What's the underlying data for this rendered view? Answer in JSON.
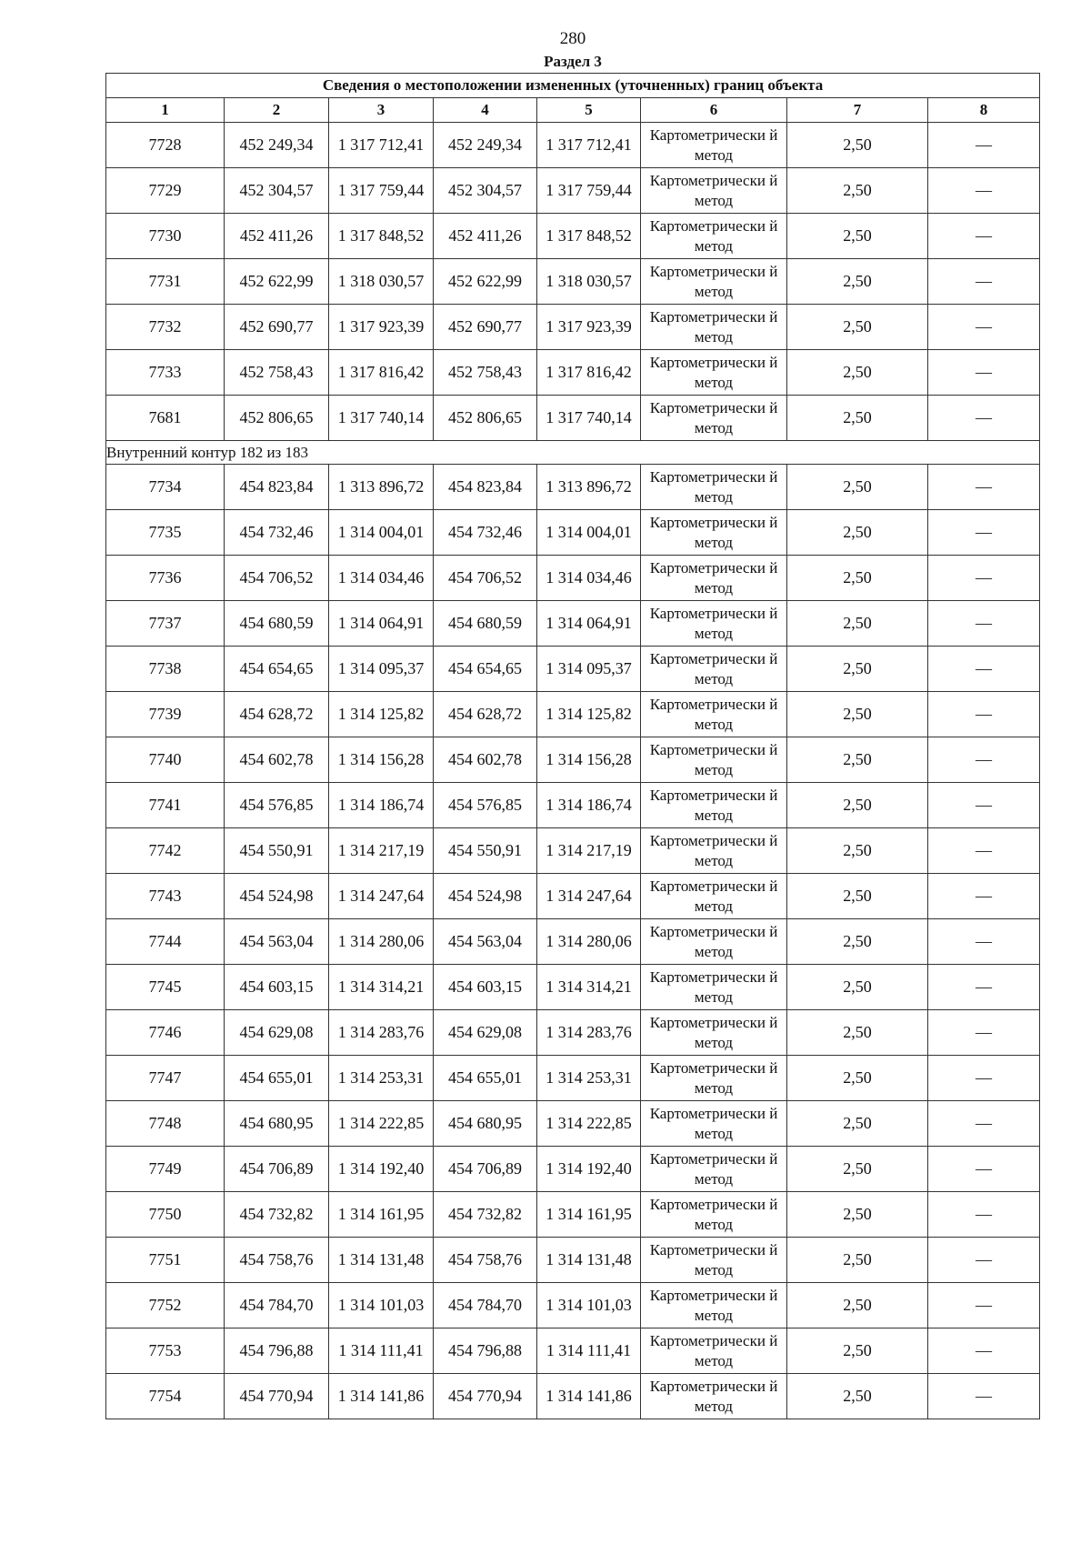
{
  "page_number": "280",
  "section_title": "Раздел 3",
  "table": {
    "caption": "Сведения о местоположении измененных (уточненных) границ объекта",
    "column_numbers": [
      "1",
      "2",
      "3",
      "4",
      "5",
      "6",
      "7",
      "8"
    ],
    "groups": [
      {
        "label": "",
        "rows": [
          [
            "7728",
            "452 249,34",
            "1 317 712,41",
            "452 249,34",
            "1 317 712,41",
            "Картометрически й метод",
            "2,50",
            "—"
          ],
          [
            "7729",
            "452 304,57",
            "1 317 759,44",
            "452 304,57",
            "1 317 759,44",
            "Картометрически й метод",
            "2,50",
            "—"
          ],
          [
            "7730",
            "452 411,26",
            "1 317 848,52",
            "452 411,26",
            "1 317 848,52",
            "Картометрически й метод",
            "2,50",
            "—"
          ],
          [
            "7731",
            "452 622,99",
            "1 318 030,57",
            "452 622,99",
            "1 318 030,57",
            "Картометрически й метод",
            "2,50",
            "—"
          ],
          [
            "7732",
            "452 690,77",
            "1 317 923,39",
            "452 690,77",
            "1 317 923,39",
            "Картометрически й метод",
            "2,50",
            "—"
          ],
          [
            "7733",
            "452 758,43",
            "1 317 816,42",
            "452 758,43",
            "1 317 816,42",
            "Картометрически й метод",
            "2,50",
            "—"
          ],
          [
            "7681",
            "452 806,65",
            "1 317 740,14",
            "452 806,65",
            "1 317 740,14",
            "Картометрически й метод",
            "2,50",
            "—"
          ]
        ]
      },
      {
        "label": "Внутренний контур 182 из 183",
        "rows": [
          [
            "7734",
            "454 823,84",
            "1 313 896,72",
            "454 823,84",
            "1 313 896,72",
            "Картометрически й метод",
            "2,50",
            "—"
          ],
          [
            "7735",
            "454 732,46",
            "1 314 004,01",
            "454 732,46",
            "1 314 004,01",
            "Картометрически й метод",
            "2,50",
            "—"
          ],
          [
            "7736",
            "454 706,52",
            "1 314 034,46",
            "454 706,52",
            "1 314 034,46",
            "Картометрически й метод",
            "2,50",
            "—"
          ],
          [
            "7737",
            "454 680,59",
            "1 314 064,91",
            "454 680,59",
            "1 314 064,91",
            "Картометрически й метод",
            "2,50",
            "—"
          ],
          [
            "7738",
            "454 654,65",
            "1 314 095,37",
            "454 654,65",
            "1 314 095,37",
            "Картометрически й метод",
            "2,50",
            "—"
          ],
          [
            "7739",
            "454 628,72",
            "1 314 125,82",
            "454 628,72",
            "1 314 125,82",
            "Картометрически й метод",
            "2,50",
            "—"
          ],
          [
            "7740",
            "454 602,78",
            "1 314 156,28",
            "454 602,78",
            "1 314 156,28",
            "Картометрически й метод",
            "2,50",
            "—"
          ],
          [
            "7741",
            "454 576,85",
            "1 314 186,74",
            "454 576,85",
            "1 314 186,74",
            "Картометрически й метод",
            "2,50",
            "—"
          ],
          [
            "7742",
            "454 550,91",
            "1 314 217,19",
            "454 550,91",
            "1 314 217,19",
            "Картометрически й метод",
            "2,50",
            "—"
          ],
          [
            "7743",
            "454 524,98",
            "1 314 247,64",
            "454 524,98",
            "1 314 247,64",
            "Картометрически й метод",
            "2,50",
            "—"
          ],
          [
            "7744",
            "454 563,04",
            "1 314 280,06",
            "454 563,04",
            "1 314 280,06",
            "Картометрически й метод",
            "2,50",
            "—"
          ],
          [
            "7745",
            "454 603,15",
            "1 314 314,21",
            "454 603,15",
            "1 314 314,21",
            "Картометрически й метод",
            "2,50",
            "—"
          ],
          [
            "7746",
            "454 629,08",
            "1 314 283,76",
            "454 629,08",
            "1 314 283,76",
            "Картометрически й метод",
            "2,50",
            "—"
          ],
          [
            "7747",
            "454 655,01",
            "1 314 253,31",
            "454 655,01",
            "1 314 253,31",
            "Картометрически й метод",
            "2,50",
            "—"
          ],
          [
            "7748",
            "454 680,95",
            "1 314 222,85",
            "454 680,95",
            "1 314 222,85",
            "Картометрически й метод",
            "2,50",
            "—"
          ],
          [
            "7749",
            "454 706,89",
            "1 314 192,40",
            "454 706,89",
            "1 314 192,40",
            "Картометрически й метод",
            "2,50",
            "—"
          ],
          [
            "7750",
            "454 732,82",
            "1 314 161,95",
            "454 732,82",
            "1 314 161,95",
            "Картометрически й метод",
            "2,50",
            "—"
          ],
          [
            "7751",
            "454 758,76",
            "1 314 131,48",
            "454 758,76",
            "1 314 131,48",
            "Картометрически й метод",
            "2,50",
            "—"
          ],
          [
            "7752",
            "454 784,70",
            "1 314 101,03",
            "454 784,70",
            "1 314 101,03",
            "Картометрически й метод",
            "2,50",
            "—"
          ],
          [
            "7753",
            "454 796,88",
            "1 314 111,41",
            "454 796,88",
            "1 314 111,41",
            "Картометрически й метод",
            "2,50",
            "—"
          ],
          [
            "7754",
            "454 770,94",
            "1 314 141,86",
            "454 770,94",
            "1 314 141,86",
            "Картометрически й метод",
            "2,50",
            "—"
          ]
        ]
      }
    ]
  }
}
